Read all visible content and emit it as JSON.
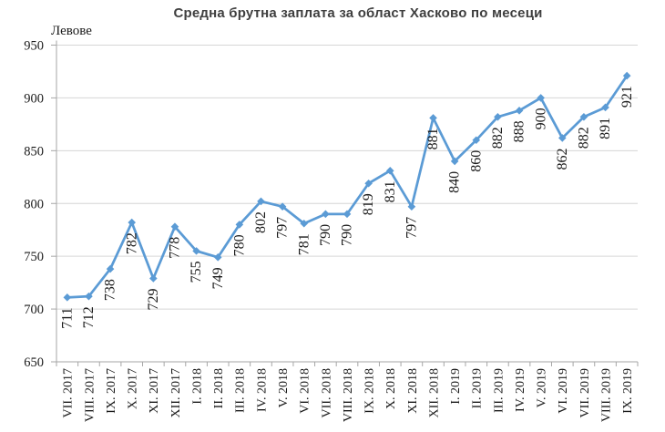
{
  "title": "Средна брутна заплата за област Хасково по месеци",
  "chart_data": {
    "type": "line",
    "title": "Средна брутна заплата за област Хасково по месеци",
    "ylabel": "Левове",
    "xlabel": "",
    "categories": [
      "VII. 2017",
      "VIII. 2017",
      "IX. 2017",
      "X. 2017",
      "XI. 2017",
      "XII. 2017",
      "I. 2018",
      "II. 2018",
      "III. 2018",
      "IV. 2018",
      "V. 2018",
      "VI. 2018",
      "VII. 2018",
      "VIII. 2018",
      "IX. 2018",
      "X. 2018",
      "XI. 2018",
      "XII. 2018",
      "I. 2019",
      "II. 2019",
      "III. 2019",
      "IV. 2019",
      "V. 2019",
      "VI. 2019",
      "VII. 2019",
      "VIII. 2019",
      "IX. 2019"
    ],
    "values": [
      711,
      712,
      738,
      782,
      729,
      778,
      755,
      749,
      780,
      802,
      797,
      781,
      790,
      790,
      819,
      831,
      797,
      881,
      840,
      860,
      882,
      888,
      900,
      862,
      882,
      891,
      921
    ],
    "ylim": [
      650,
      950
    ],
    "ytick_step": 50,
    "grid": true,
    "legend_position": "none",
    "data_labels": true,
    "marker": "diamond",
    "colors": {
      "line": "#5B9BD5",
      "marker": "#5B9BD5",
      "gridline": "#D6D6D6",
      "axis": "#A6A6A6",
      "tick_text": "#1a1a1a",
      "title_text": "#3f3f3f",
      "background": "#ffffff"
    }
  }
}
